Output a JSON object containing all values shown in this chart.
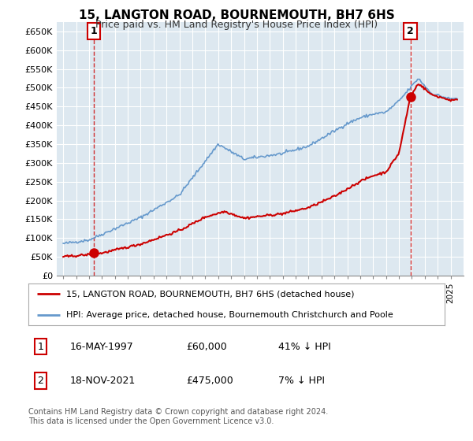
{
  "title": "15, LANGTON ROAD, BOURNEMOUTH, BH7 6HS",
  "subtitle": "Price paid vs. HM Land Registry's House Price Index (HPI)",
  "ylabel_ticks": [
    "£0",
    "£50K",
    "£100K",
    "£150K",
    "£200K",
    "£250K",
    "£300K",
    "£350K",
    "£400K",
    "£450K",
    "£500K",
    "£550K",
    "£600K",
    "£650K"
  ],
  "ytick_values": [
    0,
    50000,
    100000,
    150000,
    200000,
    250000,
    300000,
    350000,
    400000,
    450000,
    500000,
    550000,
    600000,
    650000
  ],
  "xmin": 1994.5,
  "xmax": 2026.0,
  "ymin": 0,
  "ymax": 675000,
  "sale1_year": 1997.37,
  "sale1_price": 60000,
  "sale1_label": "1",
  "sale2_year": 2021.88,
  "sale2_price": 475000,
  "sale2_label": "2",
  "legend_line1": "15, LANGTON ROAD, BOURNEMOUTH, BH7 6HS (detached house)",
  "legend_line2": "HPI: Average price, detached house, Bournemouth Christchurch and Poole",
  "ann1_num": "1",
  "ann1_date": "16-MAY-1997",
  "ann1_price": "£60,000",
  "ann1_hpi": "41% ↓ HPI",
  "ann2_num": "2",
  "ann2_date": "18-NOV-2021",
  "ann2_price": "£475,000",
  "ann2_hpi": "7% ↓ HPI",
  "footer": "Contains HM Land Registry data © Crown copyright and database right 2024.\nThis data is licensed under the Open Government Licence v3.0.",
  "sale_color": "#cc0000",
  "hpi_color": "#6699cc",
  "plot_bg": "#dde8f0",
  "grid_color": "#ffffff"
}
